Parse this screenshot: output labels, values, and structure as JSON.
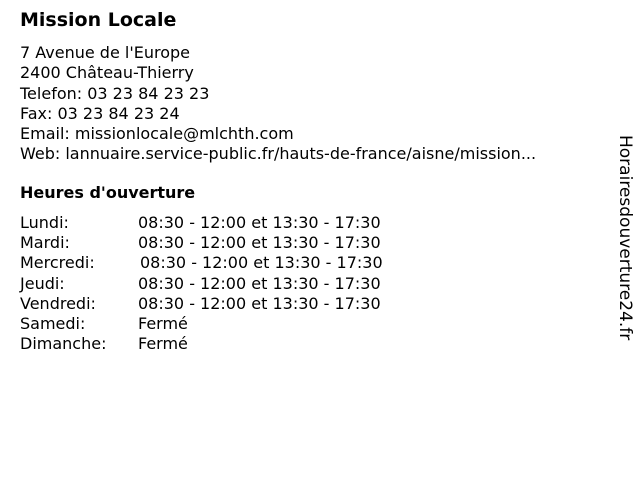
{
  "title": "Mission Locale",
  "address": {
    "street": "7 Avenue de l'Europe",
    "city": "2400 Château-Thierry",
    "phone": "Telefon: 03 23 84 23 23",
    "fax": "Fax: 03 23 84 23 24",
    "email": "Email: missionlocale@mlchth.com",
    "web": "Web: lannuaire.service-public.fr/hauts-de-france/aisne/mission..."
  },
  "hours_title": "Heures d'ouverture",
  "hours": [
    {
      "day": "Lundi:",
      "time": "08:30 - 12:00 et 13:30 - 17:30"
    },
    {
      "day": "Mardi:",
      "time": "08:30 - 12:00 et 13:30 - 17:30"
    },
    {
      "day": "Mercredi:",
      "time": "08:30 - 12:00 et 13:30 - 17:30"
    },
    {
      "day": "Jeudi:",
      "time": "08:30 - 12:00 et 13:30 - 17:30"
    },
    {
      "day": "Vendredi:",
      "time": "08:30 - 12:00 et 13:30 - 17:30"
    },
    {
      "day": "Samedi:",
      "time": "Fermé"
    },
    {
      "day": "Dimanche:",
      "time": "Fermé"
    }
  ],
  "watermark": "Horairesdouverture24.fr"
}
